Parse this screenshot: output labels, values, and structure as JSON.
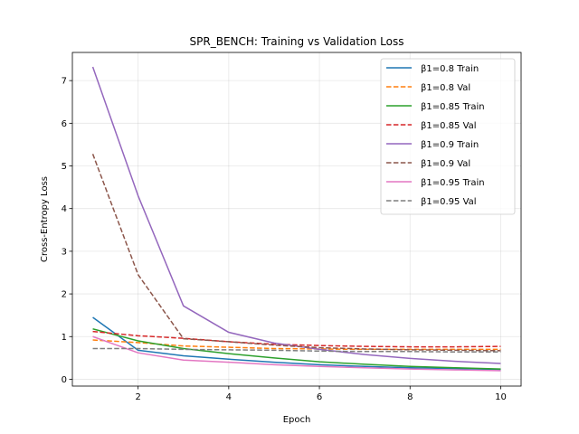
{
  "chart_data": {
    "type": "line",
    "title": "SPR_BENCH: Training vs Validation Loss",
    "xlabel": "Epoch",
    "ylabel": "Cross-Entropy Loss",
    "xlim": [
      0.55,
      10.45
    ],
    "ylim": [
      -0.16,
      7.66
    ],
    "xticks": [
      2,
      4,
      6,
      8,
      10
    ],
    "yticks": [
      0,
      1,
      2,
      3,
      4,
      5,
      6,
      7
    ],
    "grid": true,
    "legend_position": "top-right",
    "x": [
      1,
      2,
      3,
      4,
      5,
      6,
      7,
      8,
      9,
      10
    ],
    "series": [
      {
        "name": "β1=0.8 Train",
        "color": "#1f77b4",
        "dash": "solid",
        "values": [
          1.45,
          0.68,
          0.55,
          0.47,
          0.4,
          0.34,
          0.3,
          0.27,
          0.25,
          0.23
        ]
      },
      {
        "name": "β1=0.8 Val",
        "color": "#ff7f0e",
        "dash": "dashed",
        "values": [
          0.92,
          0.86,
          0.78,
          0.75,
          0.72,
          0.71,
          0.7,
          0.7,
          0.7,
          0.7
        ]
      },
      {
        "name": "β1=0.85 Train",
        "color": "#2ca02c",
        "dash": "solid",
        "values": [
          1.18,
          0.9,
          0.72,
          0.6,
          0.5,
          0.41,
          0.35,
          0.3,
          0.27,
          0.24
        ]
      },
      {
        "name": "β1=0.85 Val",
        "color": "#d62728",
        "dash": "dashed",
        "values": [
          1.12,
          1.02,
          0.96,
          0.88,
          0.82,
          0.79,
          0.77,
          0.76,
          0.76,
          0.77
        ]
      },
      {
        "name": "β1=0.9 Train",
        "color": "#9467bd",
        "dash": "solid",
        "values": [
          7.32,
          4.3,
          1.72,
          1.1,
          0.85,
          0.7,
          0.58,
          0.49,
          0.42,
          0.37
        ]
      },
      {
        "name": "β1=0.9 Val",
        "color": "#8c564b",
        "dash": "dashed",
        "values": [
          5.28,
          2.45,
          0.95,
          0.88,
          0.8,
          0.74,
          0.71,
          0.69,
          0.68,
          0.67
        ]
      },
      {
        "name": "β1=0.95 Train",
        "color": "#e377c2",
        "dash": "solid",
        "values": [
          1.0,
          0.62,
          0.45,
          0.4,
          0.34,
          0.3,
          0.27,
          0.24,
          0.22,
          0.2
        ]
      },
      {
        "name": "β1=0.95 Val",
        "color": "#7f7f7f",
        "dash": "dashed",
        "values": [
          0.72,
          0.72,
          0.7,
          0.69,
          0.68,
          0.66,
          0.65,
          0.65,
          0.64,
          0.64
        ]
      }
    ]
  }
}
